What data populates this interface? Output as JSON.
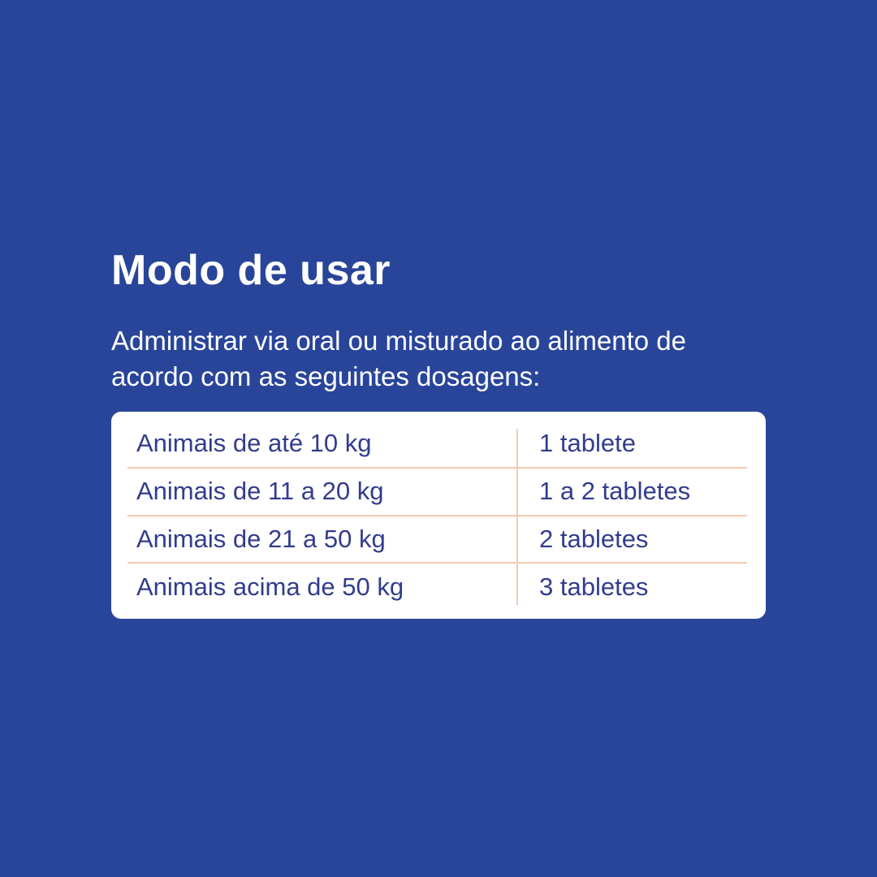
{
  "page": {
    "background_color": "#29459A",
    "card_color": "#FFFFFF",
    "title": "Modo de usar",
    "description": "Administrar via oral ou misturado ao alimento de acordo com as seguintes dosagens:"
  },
  "dosage_table": {
    "text_color": "#333C8D",
    "divider_color": "#F6C8B2",
    "rows": [
      {
        "animal": "Animais de até 10 kg",
        "dose": "1 tablete"
      },
      {
        "animal": "Animais de 11 a 20 kg",
        "dose": "1 a 2 tabletes"
      },
      {
        "animal": "Animais de 21 a 50 kg",
        "dose": "2 tabletes"
      },
      {
        "animal": "Animais acima de 50 kg",
        "dose": "3 tabletes"
      }
    ]
  }
}
